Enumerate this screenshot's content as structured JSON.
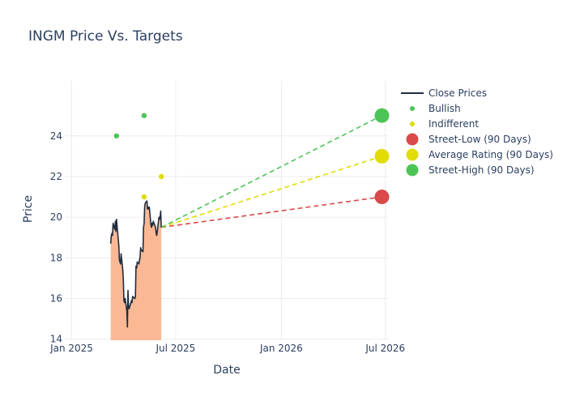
{
  "chart_data": {
    "type": "line",
    "title": "INGM Price Vs. Targets",
    "xlabel": "Date",
    "ylabel": "Price",
    "xlim": [
      "2024-12-20",
      "2026-07-07"
    ],
    "ylim": [
      13.95,
      26.7
    ],
    "grid": true,
    "legend_position": "right",
    "x_ticks": [
      {
        "date": "2025-01-01",
        "label": "Jan 2025"
      },
      {
        "date": "2025-07-01",
        "label": "Jul 2025"
      },
      {
        "date": "2026-01-01",
        "label": "Jan 2026"
      },
      {
        "date": "2026-07-01",
        "label": "Jul 2026"
      }
    ],
    "y_ticks": [
      14,
      16,
      18,
      20,
      22,
      24
    ],
    "close_prices": {
      "name": "Close Prices",
      "color": "#1f2d3d",
      "fill_color": "#fbb48f",
      "points": [
        [
          "2025-03-10",
          18.7
        ],
        [
          "2025-03-11",
          19.1
        ],
        [
          "2025-03-12",
          19.2
        ],
        [
          "2025-03-13",
          19.1
        ],
        [
          "2025-03-14",
          19.7
        ],
        [
          "2025-03-17",
          19.4
        ],
        [
          "2025-03-18",
          19.8
        ],
        [
          "2025-03-19",
          19.3
        ],
        [
          "2025-03-20",
          19.9
        ],
        [
          "2025-03-21",
          19.6
        ],
        [
          "2025-03-24",
          18.6
        ],
        [
          "2025-03-25",
          17.9
        ],
        [
          "2025-03-26",
          17.8
        ],
        [
          "2025-03-27",
          17.7
        ],
        [
          "2025-03-28",
          18.2
        ],
        [
          "2025-03-31",
          17.4
        ],
        [
          "2025-04-01",
          16.9
        ],
        [
          "2025-04-02",
          15.9
        ],
        [
          "2025-04-03",
          15.8
        ],
        [
          "2025-04-04",
          16.0
        ],
        [
          "2025-04-07",
          15.4
        ],
        [
          "2025-04-08",
          14.6
        ],
        [
          "2025-04-09",
          16.4
        ],
        [
          "2025-04-10",
          15.6
        ],
        [
          "2025-04-11",
          15.5
        ],
        [
          "2025-04-14",
          15.8
        ],
        [
          "2025-04-15",
          15.9
        ],
        [
          "2025-04-16",
          15.8
        ],
        [
          "2025-04-17",
          16.1
        ],
        [
          "2025-04-21",
          16.0
        ],
        [
          "2025-04-22",
          16.1
        ],
        [
          "2025-04-23",
          17.6
        ],
        [
          "2025-04-24",
          17.5
        ],
        [
          "2025-04-25",
          17.8
        ],
        [
          "2025-04-28",
          17.7
        ],
        [
          "2025-04-29",
          17.9
        ],
        [
          "2025-04-30",
          18.0
        ],
        [
          "2025-05-01",
          18.5
        ],
        [
          "2025-05-02",
          18.4
        ],
        [
          "2025-05-05",
          18.3
        ],
        [
          "2025-05-06",
          19.5
        ],
        [
          "2025-05-07",
          19.7
        ],
        [
          "2025-05-08",
          20.5
        ],
        [
          "2025-05-09",
          20.7
        ],
        [
          "2025-05-12",
          20.8
        ],
        [
          "2025-05-13",
          20.4
        ],
        [
          "2025-05-14",
          20.5
        ],
        [
          "2025-05-15",
          20.4
        ],
        [
          "2025-05-16",
          20.5
        ],
        [
          "2025-05-19",
          19.6
        ],
        [
          "2025-05-20",
          19.5
        ],
        [
          "2025-05-21",
          19.7
        ],
        [
          "2025-05-22",
          19.6
        ],
        [
          "2025-05-23",
          19.8
        ],
        [
          "2025-05-27",
          19.5
        ],
        [
          "2025-05-28",
          19.2
        ],
        [
          "2025-05-29",
          19.1
        ],
        [
          "2025-05-30",
          19.3
        ],
        [
          "2025-06-02",
          20.0
        ],
        [
          "2025-06-03",
          19.9
        ],
        [
          "2025-06-04",
          20.0
        ],
        [
          "2025-06-05",
          20.3
        ],
        [
          "2025-06-06",
          19.5
        ]
      ]
    },
    "bullish": {
      "name": "Bullish",
      "color": "#4dc456",
      "points": [
        [
          "2025-03-20",
          24
        ],
        [
          "2025-05-07",
          25
        ]
      ]
    },
    "indifferent": {
      "name": "Indifferent",
      "color": "#e0dc04",
      "points": [
        [
          "2025-05-07",
          21
        ],
        [
          "2025-06-06",
          22
        ]
      ]
    },
    "targets": [
      {
        "name": "Street-Low (90 Days)",
        "color": "#d94a4a",
        "value": 21,
        "date": "2026-06-25"
      },
      {
        "name": "Average Rating (90 Days)",
        "color": "#e0dc04",
        "value": 23,
        "date": "2026-06-25"
      },
      {
        "name": "Street-High (90 Days)",
        "color": "#4dc456",
        "value": 25,
        "date": "2026-06-25"
      }
    ],
    "legend": [
      {
        "label": "Close Prices",
        "kind": "line",
        "color": "#1f2d3d"
      },
      {
        "label": "Bullish",
        "kind": "dot",
        "color": "#4dc456"
      },
      {
        "label": "Indifferent",
        "kind": "dot",
        "color": "#e0dc04"
      },
      {
        "label": "Street-Low (90 Days)",
        "kind": "bigdot",
        "color": "#d94a4a"
      },
      {
        "label": "Average Rating (90 Days)",
        "kind": "bigdot",
        "color": "#e0dc04"
      },
      {
        "label": "Street-High (90 Days)",
        "kind": "bigdot",
        "color": "#4dc456"
      }
    ]
  }
}
